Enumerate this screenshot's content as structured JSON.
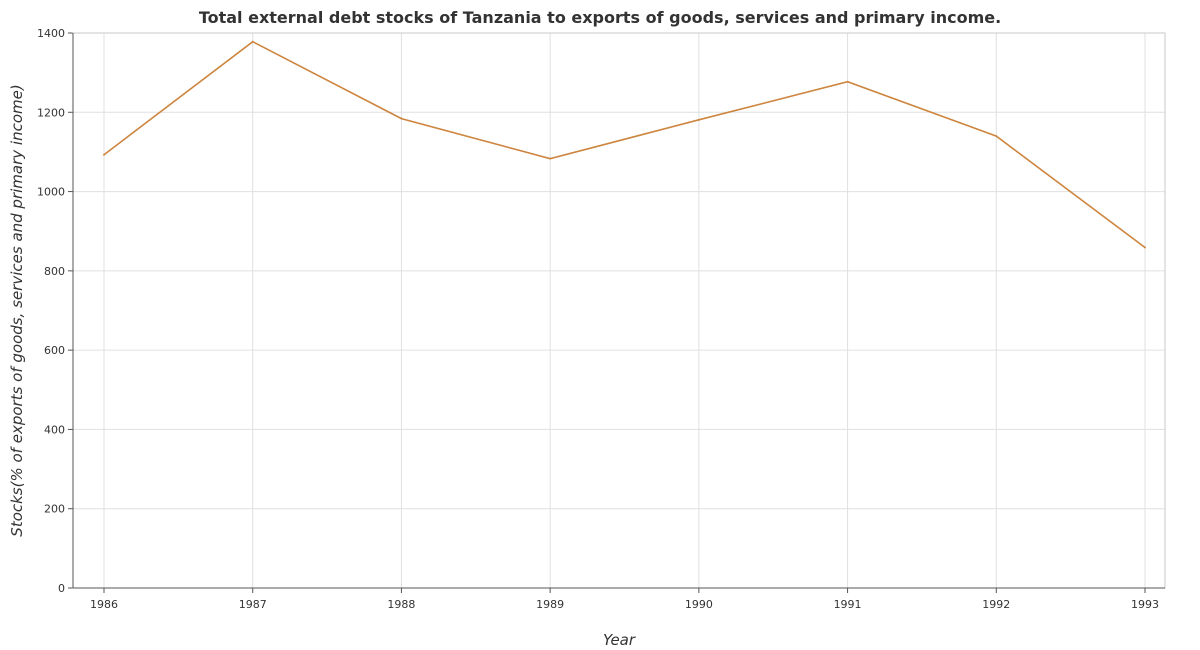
{
  "chart_data": {
    "type": "line",
    "title": "Total external debt stocks of Tanzania to exports of goods, services and primary income.",
    "xlabel": "Year",
    "ylabel": "Stocks(% of exports of goods, services and primary income)",
    "categories": [
      "1986",
      "1987",
      "1988",
      "1989",
      "1990",
      "1991",
      "1992",
      "1993"
    ],
    "series": [
      {
        "values": [
          1093,
          1378,
          1184,
          1083,
          1181,
          1277,
          1140,
          859
        ],
        "color": "#cd853f"
      }
    ],
    "ylim": [
      0,
      1400
    ],
    "yticks": [
      "0",
      "200",
      "400",
      "600",
      "800",
      "1000",
      "1200",
      "1400"
    ],
    "grid": true,
    "legend": "none"
  }
}
